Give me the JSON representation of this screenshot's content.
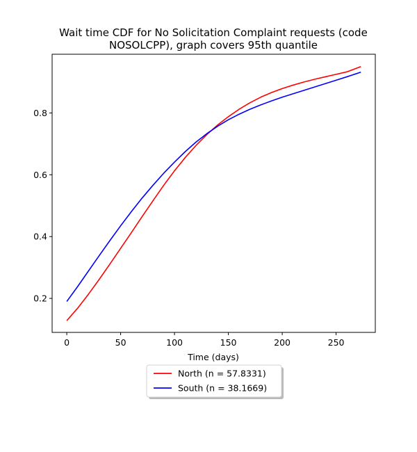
{
  "chart_data": {
    "type": "line",
    "title": "Wait time CDF for No Solicitation Complaint  requests (code NOSOLCPP), graph covers 95th quantile",
    "title_lines": [
      "Wait time CDF for No Solicitation Complaint  requests (code",
      "NOSOLCPP), graph covers 95th quantile"
    ],
    "xlabel": "Time (days)",
    "ylabel": "",
    "xlim": [
      -13.6,
      286.4
    ],
    "ylim": [
      0.09,
      0.99
    ],
    "xticks": [
      0,
      50,
      100,
      150,
      200,
      250
    ],
    "yticks": [
      0.2,
      0.4,
      0.6,
      0.8
    ],
    "grid": false,
    "legend_placement": "below",
    "series": [
      {
        "name": "North (n = 57.8331)",
        "color": "#ff0000",
        "x": [
          0,
          10,
          20,
          30,
          40,
          50,
          60,
          70,
          80,
          90,
          100,
          110,
          120,
          130,
          140,
          150,
          160,
          170,
          180,
          190,
          200,
          210,
          220,
          230,
          240,
          250,
          260,
          273
        ],
        "y": [
          0.128,
          0.168,
          0.213,
          0.261,
          0.311,
          0.362,
          0.413,
          0.465,
          0.516,
          0.566,
          0.613,
          0.656,
          0.695,
          0.73,
          0.761,
          0.788,
          0.812,
          0.833,
          0.851,
          0.866,
          0.879,
          0.89,
          0.9,
          0.909,
          0.917,
          0.925,
          0.933,
          0.95
        ]
      },
      {
        "name": "South (n = 38.1669)",
        "color": "#0000ff",
        "x": [
          0,
          10,
          20,
          30,
          40,
          50,
          60,
          70,
          80,
          90,
          100,
          110,
          120,
          130,
          140,
          150,
          160,
          170,
          180,
          190,
          200,
          210,
          220,
          230,
          240,
          250,
          260,
          273
        ],
        "y": [
          0.19,
          0.238,
          0.288,
          0.338,
          0.387,
          0.435,
          0.481,
          0.525,
          0.566,
          0.605,
          0.641,
          0.675,
          0.706,
          0.733,
          0.757,
          0.778,
          0.796,
          0.812,
          0.826,
          0.839,
          0.851,
          0.862,
          0.873,
          0.884,
          0.895,
          0.906,
          0.917,
          0.932
        ]
      }
    ]
  }
}
